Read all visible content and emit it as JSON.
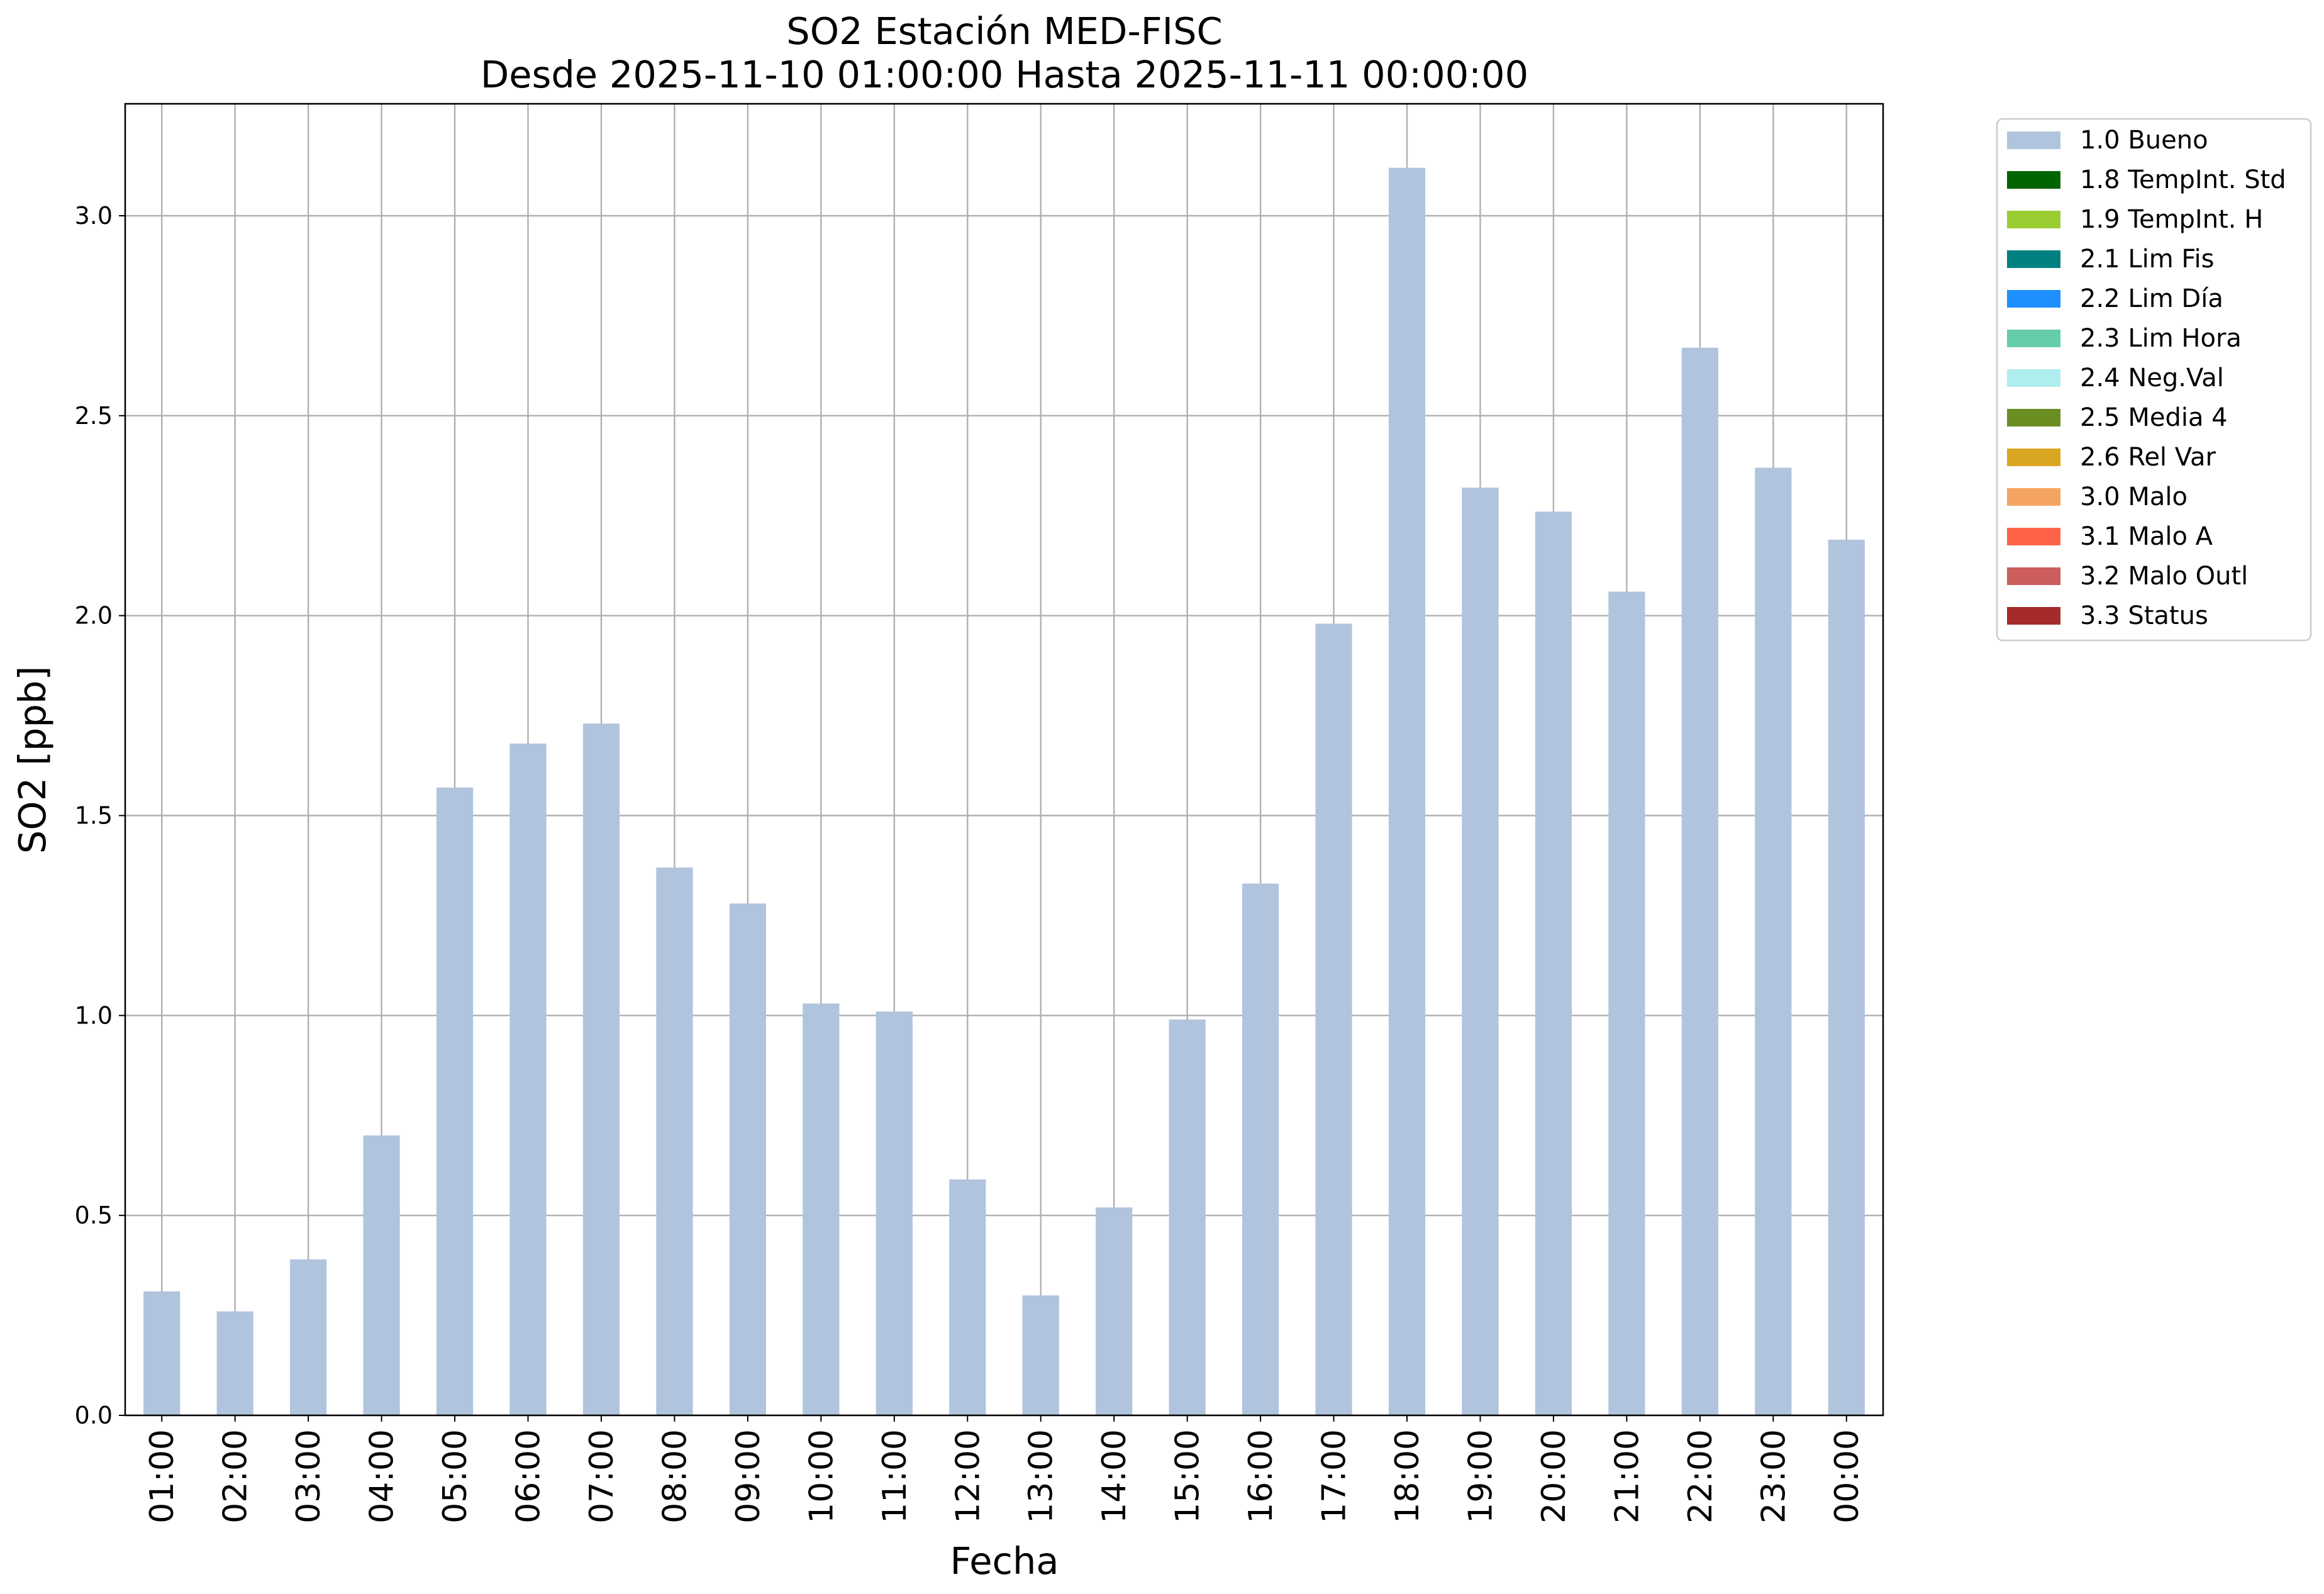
{
  "chart_data": {
    "type": "bar",
    "title": "SO2 Estación MED-FISC",
    "subtitle": "Desde 2025-11-10 01:00:00 Hasta 2025-11-11 00:00:00",
    "xlabel": "Fecha",
    "ylabel": "SO2 [ppb]",
    "ylim": [
      0,
      3.28
    ],
    "yticks": [
      "0.0",
      "0.5",
      "1.0",
      "1.5",
      "2.0",
      "2.5",
      "3.0"
    ],
    "grid": true,
    "legend_position": "outside-top-right",
    "categories": [
      "01:00",
      "02:00",
      "03:00",
      "04:00",
      "05:00",
      "06:00",
      "07:00",
      "08:00",
      "09:00",
      "10:00",
      "11:00",
      "12:00",
      "13:00",
      "14:00",
      "15:00",
      "16:00",
      "17:00",
      "18:00",
      "19:00",
      "20:00",
      "21:00",
      "22:00",
      "23:00",
      "00:00"
    ],
    "series": [
      {
        "name": "1.0 Bueno",
        "color": "#b0c4de",
        "values": [
          0.31,
          0.26,
          0.39,
          0.7,
          1.57,
          1.68,
          1.73,
          1.37,
          1.28,
          1.03,
          1.01,
          0.59,
          0.3,
          0.52,
          0.99,
          1.33,
          1.98,
          3.12,
          2.32,
          2.26,
          2.06,
          2.67,
          2.37,
          2.19
        ]
      }
    ],
    "legend": [
      {
        "label": "1.0 Bueno",
        "color": "#b0c4de"
      },
      {
        "label": "1.8 TempInt. Std",
        "color": "#006400"
      },
      {
        "label": "1.9 TempInt. H",
        "color": "#9acd32"
      },
      {
        "label": "2.1 Lim Fis",
        "color": "#008080"
      },
      {
        "label": "2.2 Lim Día",
        "color": "#1e90ff"
      },
      {
        "label": "2.3 Lim Hora",
        "color": "#66cdaa"
      },
      {
        "label": "2.4 Neg.Val",
        "color": "#afeeee"
      },
      {
        "label": "2.5 Media 4",
        "color": "#6b8e23"
      },
      {
        "label": "2.6 Rel Var",
        "color": "#daa520"
      },
      {
        "label": "3.0 Malo",
        "color": "#f4a460"
      },
      {
        "label": "3.1 Malo A",
        "color": "#ff6347"
      },
      {
        "label": "3.2 Malo Outl",
        "color": "#cd5c5c"
      },
      {
        "label": "3.3 Status",
        "color": "#a52a2a"
      }
    ]
  }
}
